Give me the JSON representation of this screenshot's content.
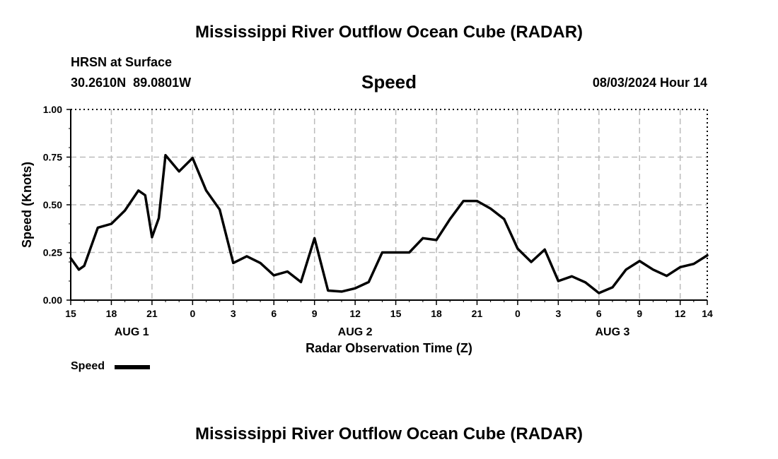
{
  "chart_data": {
    "type": "line",
    "title": "Mississippi River Outflow Ocean Cube (RADAR)",
    "subtitle_left_1": "HRSN at Surface",
    "subtitle_left_2": "30.2610N  89.0801W",
    "subtitle_center": "Speed",
    "subtitle_right": "08/03/2024 Hour 14",
    "xlabel": "Radar Observation Time (Z)",
    "ylabel": "Speed (Knots)",
    "ylim": [
      0,
      1
    ],
    "xlim_hours": [
      0,
      47
    ],
    "grid": true,
    "yticks": [
      "0.00",
      "0.25",
      "0.50",
      "0.75",
      "1.00"
    ],
    "xticks": [
      {
        "h": 0,
        "label": "15"
      },
      {
        "h": 3,
        "label": "18"
      },
      {
        "h": 6,
        "label": "21"
      },
      {
        "h": 9,
        "label": "0"
      },
      {
        "h": 12,
        "label": "3"
      },
      {
        "h": 15,
        "label": "6"
      },
      {
        "h": 18,
        "label": "9"
      },
      {
        "h": 21,
        "label": "12"
      },
      {
        "h": 24,
        "label": "15"
      },
      {
        "h": 27,
        "label": "18"
      },
      {
        "h": 30,
        "label": "21"
      },
      {
        "h": 33,
        "label": "0"
      },
      {
        "h": 36,
        "label": "3"
      },
      {
        "h": 39,
        "label": "6"
      },
      {
        "h": 42,
        "label": "9"
      },
      {
        "h": 45,
        "label": "12"
      },
      {
        "h": 47,
        "label": "14"
      }
    ],
    "day_labels": [
      {
        "h": 4.5,
        "label": "AUG 1"
      },
      {
        "h": 21,
        "label": "AUG 2"
      },
      {
        "h": 40,
        "label": "AUG 3"
      }
    ],
    "legend": "Speed",
    "legend_placement": "bottom-left",
    "series": [
      {
        "name": "Speed",
        "x_hours": [
          0,
          0.6,
          1,
          2,
          3,
          4,
          5,
          5.5,
          6,
          6.5,
          7,
          8,
          9,
          10,
          11,
          12,
          13,
          14,
          15,
          16,
          17,
          18,
          19,
          20,
          21,
          22,
          23,
          24,
          25,
          26,
          27,
          28,
          29,
          30,
          31,
          32,
          33,
          34,
          35,
          36,
          37,
          38,
          39,
          40,
          41,
          42,
          43,
          44,
          45,
          46,
          47
        ],
        "values": [
          0.22,
          0.16,
          0.18,
          0.38,
          0.4,
          0.47,
          0.575,
          0.55,
          0.33,
          0.43,
          0.76,
          0.675,
          0.745,
          0.575,
          0.475,
          0.195,
          0.23,
          0.195,
          0.13,
          0.15,
          0.095,
          0.325,
          0.05,
          0.045,
          0.062,
          0.095,
          0.25,
          0.25,
          0.25,
          0.325,
          0.315,
          0.425,
          0.52,
          0.52,
          0.48,
          0.425,
          0.27,
          0.2,
          0.265,
          0.1,
          0.125,
          0.093,
          0.037,
          0.067,
          0.16,
          0.205,
          0.16,
          0.127,
          0.173,
          0.19,
          0.235
        ]
      }
    ]
  },
  "footer_title": "Mississippi River Outflow Ocean Cube (RADAR)"
}
